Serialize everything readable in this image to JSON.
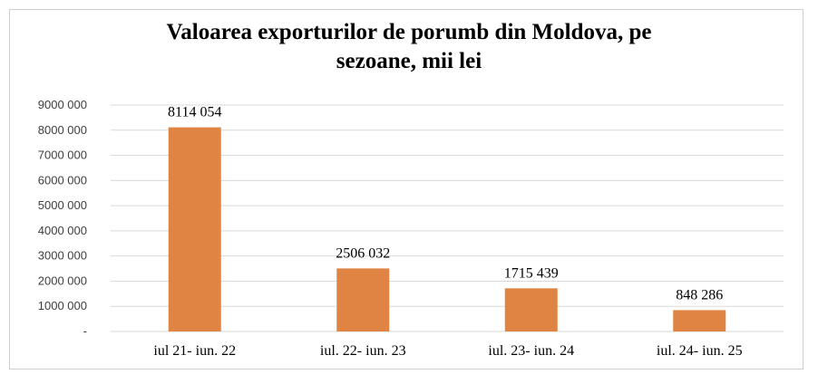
{
  "chart_data": {
    "type": "bar",
    "title_lines": [
      "Valoarea exporturilor de porumb din Moldova, pe",
      "sezoane, mii lei"
    ],
    "categories": [
      "iul 21- iun. 22",
      "iul. 22- iun. 23",
      "iul. 23- iun. 24",
      "iul. 24- iun. 25"
    ],
    "values": [
      8114054,
      2506032,
      1715439,
      848286
    ],
    "value_labels": [
      "8114 054",
      "2506 032",
      "1715 439",
      "848 286"
    ],
    "ylim": [
      0,
      9000000
    ],
    "y_ticks": [
      {
        "value": 0,
        "label": "-"
      },
      {
        "value": 1000000,
        "label": "1000 000"
      },
      {
        "value": 2000000,
        "label": "2000 000"
      },
      {
        "value": 3000000,
        "label": "3000 000"
      },
      {
        "value": 4000000,
        "label": "4000 000"
      },
      {
        "value": 5000000,
        "label": "5000 000"
      },
      {
        "value": 6000000,
        "label": "6000 000"
      },
      {
        "value": 7000000,
        "label": "7000 000"
      },
      {
        "value": 8000000,
        "label": "8000 000"
      },
      {
        "value": 9000000,
        "label": "9000 000"
      }
    ],
    "grid": true,
    "legend": "none",
    "bar_color": "#e08443",
    "grid_color": "#d9d9d9"
  }
}
